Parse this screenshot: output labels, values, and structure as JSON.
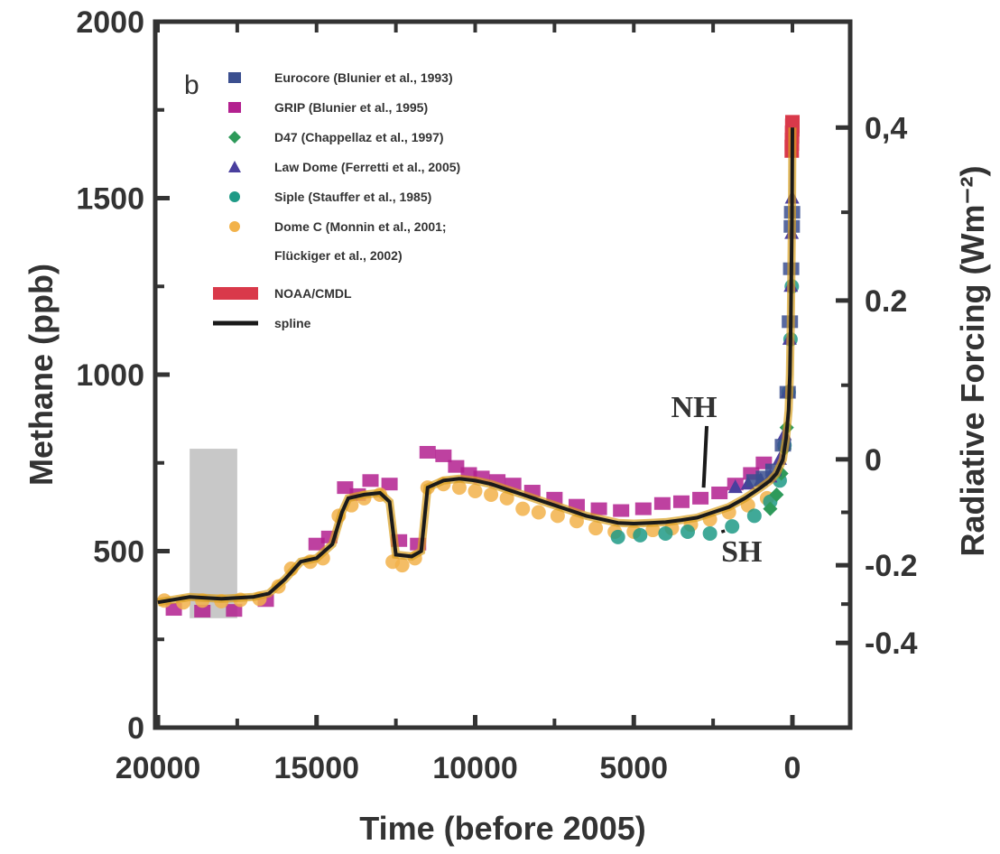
{
  "chart_data": {
    "type": "scatter",
    "panel_label": "b",
    "xlabel": "Time (before 2005)",
    "ylabel": "Methane (ppb)",
    "y2label": "Radiative Forcing (Wm⁻²)",
    "xlim": [
      20000,
      0
    ],
    "ylim": [
      0,
      2000
    ],
    "x_ticks": [
      "20000",
      "15000",
      "10000",
      "5000",
      "0"
    ],
    "y_ticks": [
      "0",
      "500",
      "1000",
      "1500",
      "2000"
    ],
    "y2_ticks": [
      {
        "label": "0,4",
        "ppb": 1700
      },
      {
        "label": "0.2",
        "ppb": 1210
      },
      {
        "label": "0",
        "ppb": 760
      },
      {
        "label": "-0.2",
        "ppb": 460
      },
      {
        "label": "-0.4",
        "ppb": 240
      }
    ],
    "grid": false,
    "legend_position": "top-left",
    "legend": [
      {
        "label": "Eurocore (Blunier et al., 1993)",
        "color": "#3b4f8f",
        "marker": "square"
      },
      {
        "label": "GRIP (Blunier et al., 1995)",
        "color": "#b3208f",
        "marker": "square"
      },
      {
        "label": "D47 (Chappellaz et al., 1997)",
        "color": "#2e9a5a",
        "marker": "diamond"
      },
      {
        "label": "Law Dome (Ferretti et al., 2005)",
        "color": "#4a3f9e",
        "marker": "triangle"
      },
      {
        "label": "Siple (Stauffer et al., 1985)",
        "color": "#1f9a86",
        "marker": "circle"
      },
      {
        "label": "Dome C (Monnin et al., 2001;",
        "color": "#f2b24a",
        "marker": "circle"
      },
      {
        "label": "Flückiger et al., 2002)",
        "color": "",
        "marker": "none"
      },
      {
        "label": "NOAA/CMDL",
        "color": "#d9394a",
        "marker": "band"
      },
      {
        "label": "spline",
        "color": "#1a1a1a",
        "marker": "line"
      }
    ],
    "annotations": [
      {
        "text": "NH",
        "x": 3100,
        "y": 880,
        "target_x": 2800,
        "target_y": 680
      },
      {
        "text": "SH",
        "x": 1600,
        "y": 470,
        "target_x": 2200,
        "target_y": 560
      }
    ],
    "shaded_region": {
      "x": [
        19000,
        17500
      ],
      "y": [
        310,
        790
      ],
      "color": "#c8c8c8"
    },
    "series": [
      {
        "name": "GRIP (Blunier et al., 1995)",
        "color": "#b3208f",
        "marker": "square",
        "points": [
          [
            19500,
            335
          ],
          [
            18600,
            330
          ],
          [
            17600,
            332
          ],
          [
            16600,
            360
          ],
          [
            15000,
            520
          ],
          [
            14600,
            540
          ],
          [
            14100,
            680
          ],
          [
            13700,
            660
          ],
          [
            13300,
            700
          ],
          [
            12700,
            690
          ],
          [
            12400,
            530
          ],
          [
            11800,
            520
          ],
          [
            11500,
            780
          ],
          [
            11000,
            770
          ],
          [
            10600,
            740
          ],
          [
            10200,
            720
          ],
          [
            9800,
            710
          ],
          [
            9300,
            700
          ],
          [
            8800,
            690
          ],
          [
            8200,
            670
          ],
          [
            7500,
            650
          ],
          [
            6800,
            630
          ],
          [
            6100,
            620
          ],
          [
            5400,
            615
          ],
          [
            4700,
            620
          ],
          [
            4100,
            635
          ],
          [
            3500,
            640
          ],
          [
            2900,
            650
          ],
          [
            2300,
            665
          ],
          [
            1800,
            690
          ],
          [
            1300,
            720
          ],
          [
            900,
            750
          ]
        ]
      },
      {
        "name": "Dome C (Monnin et al., 2001; Flückiger et al., 2002)",
        "color": "#f2b24a",
        "marker": "circle",
        "points": [
          [
            19800,
            360
          ],
          [
            19200,
            355
          ],
          [
            18600,
            360
          ],
          [
            18000,
            358
          ],
          [
            17400,
            362
          ],
          [
            16800,
            365
          ],
          [
            16200,
            400
          ],
          [
            15800,
            450
          ],
          [
            15200,
            470
          ],
          [
            14800,
            480
          ],
          [
            14300,
            600
          ],
          [
            13900,
            630
          ],
          [
            13500,
            650
          ],
          [
            13000,
            660
          ],
          [
            12600,
            470
          ],
          [
            12300,
            460
          ],
          [
            11900,
            480
          ],
          [
            11500,
            680
          ],
          [
            11000,
            690
          ],
          [
            10500,
            680
          ],
          [
            10000,
            670
          ],
          [
            9500,
            660
          ],
          [
            9000,
            650
          ],
          [
            8500,
            620
          ],
          [
            8000,
            610
          ],
          [
            7400,
            600
          ],
          [
            6800,
            585
          ],
          [
            6200,
            565
          ],
          [
            5600,
            555
          ],
          [
            5000,
            555
          ],
          [
            4400,
            560
          ],
          [
            3800,
            565
          ],
          [
            3200,
            575
          ],
          [
            2600,
            590
          ],
          [
            2000,
            610
          ],
          [
            1400,
            630
          ],
          [
            800,
            650
          ]
        ]
      },
      {
        "name": "Siple (Stauffer et al., 1985)",
        "color": "#1f9a86",
        "marker": "circle",
        "points": [
          [
            5500,
            540
          ],
          [
            4800,
            545
          ],
          [
            4000,
            550
          ],
          [
            3300,
            555
          ],
          [
            2600,
            550
          ],
          [
            1900,
            570
          ],
          [
            1200,
            600
          ],
          [
            700,
            640
          ],
          [
            400,
            700
          ],
          [
            250,
            800
          ],
          [
            120,
            950
          ],
          [
            60,
            1100
          ],
          [
            20,
            1250
          ]
        ]
      },
      {
        "name": "D47 (Chappellaz et al., 1997)",
        "color": "#2e9a5a",
        "marker": "diamond",
        "points": [
          [
            700,
            620
          ],
          [
            500,
            660
          ],
          [
            350,
            720
          ],
          [
            250,
            790
          ],
          [
            180,
            850
          ]
        ]
      },
      {
        "name": "Law Dome (Ferretti et al., 2005)",
        "color": "#4a3f9e",
        "marker": "triangle",
        "points": [
          [
            1800,
            680
          ],
          [
            1400,
            690
          ],
          [
            1000,
            700
          ],
          [
            700,
            710
          ],
          [
            400,
            760
          ],
          [
            250,
            830
          ],
          [
            150,
            950
          ],
          [
            90,
            1100
          ],
          [
            50,
            1250
          ],
          [
            25,
            1400
          ],
          [
            10,
            1500
          ]
        ]
      },
      {
        "name": "Eurocore (Blunier et al., 1993)",
        "color": "#3b4f8f",
        "marker": "square",
        "points": [
          [
            1200,
            700
          ],
          [
            900,
            710
          ],
          [
            600,
            730
          ],
          [
            300,
            800
          ],
          [
            150,
            950
          ],
          [
            80,
            1150
          ],
          [
            40,
            1300
          ],
          [
            20,
            1420
          ],
          [
            10,
            1460
          ]
        ]
      },
      {
        "name": "NOAA/CMDL",
        "color": "#d9394a",
        "marker": "band",
        "points": [
          [
            20,
            1640
          ],
          [
            15,
            1660
          ],
          [
            10,
            1680
          ],
          [
            5,
            1700
          ],
          [
            0,
            1710
          ]
        ]
      },
      {
        "name": "spline",
        "color": "#1a1a1a",
        "marker": "line",
        "points": [
          [
            20000,
            355
          ],
          [
            19000,
            370
          ],
          [
            18000,
            365
          ],
          [
            17000,
            370
          ],
          [
            16500,
            380
          ],
          [
            16000,
            420
          ],
          [
            15500,
            470
          ],
          [
            15000,
            480
          ],
          [
            14500,
            520
          ],
          [
            14200,
            610
          ],
          [
            14000,
            650
          ],
          [
            13500,
            660
          ],
          [
            13000,
            665
          ],
          [
            12700,
            640
          ],
          [
            12500,
            490
          ],
          [
            12000,
            485
          ],
          [
            11700,
            500
          ],
          [
            11500,
            680
          ],
          [
            11000,
            700
          ],
          [
            10500,
            705
          ],
          [
            10000,
            700
          ],
          [
            9500,
            690
          ],
          [
            9000,
            675
          ],
          [
            8500,
            660
          ],
          [
            8000,
            645
          ],
          [
            7500,
            630
          ],
          [
            7000,
            615
          ],
          [
            6500,
            600
          ],
          [
            6000,
            590
          ],
          [
            5500,
            580
          ],
          [
            5000,
            578
          ],
          [
            4500,
            580
          ],
          [
            4000,
            582
          ],
          [
            3500,
            588
          ],
          [
            3000,
            595
          ],
          [
            2500,
            610
          ],
          [
            2000,
            625
          ],
          [
            1500,
            650
          ],
          [
            1000,
            680
          ],
          [
            700,
            700
          ],
          [
            500,
            720
          ],
          [
            300,
            760
          ],
          [
            200,
            820
          ],
          [
            120,
            900
          ],
          [
            80,
            1000
          ],
          [
            50,
            1150
          ],
          [
            30,
            1300
          ],
          [
            15,
            1450
          ],
          [
            8,
            1550
          ],
          [
            3,
            1650
          ],
          [
            0,
            1700
          ]
        ]
      }
    ]
  }
}
